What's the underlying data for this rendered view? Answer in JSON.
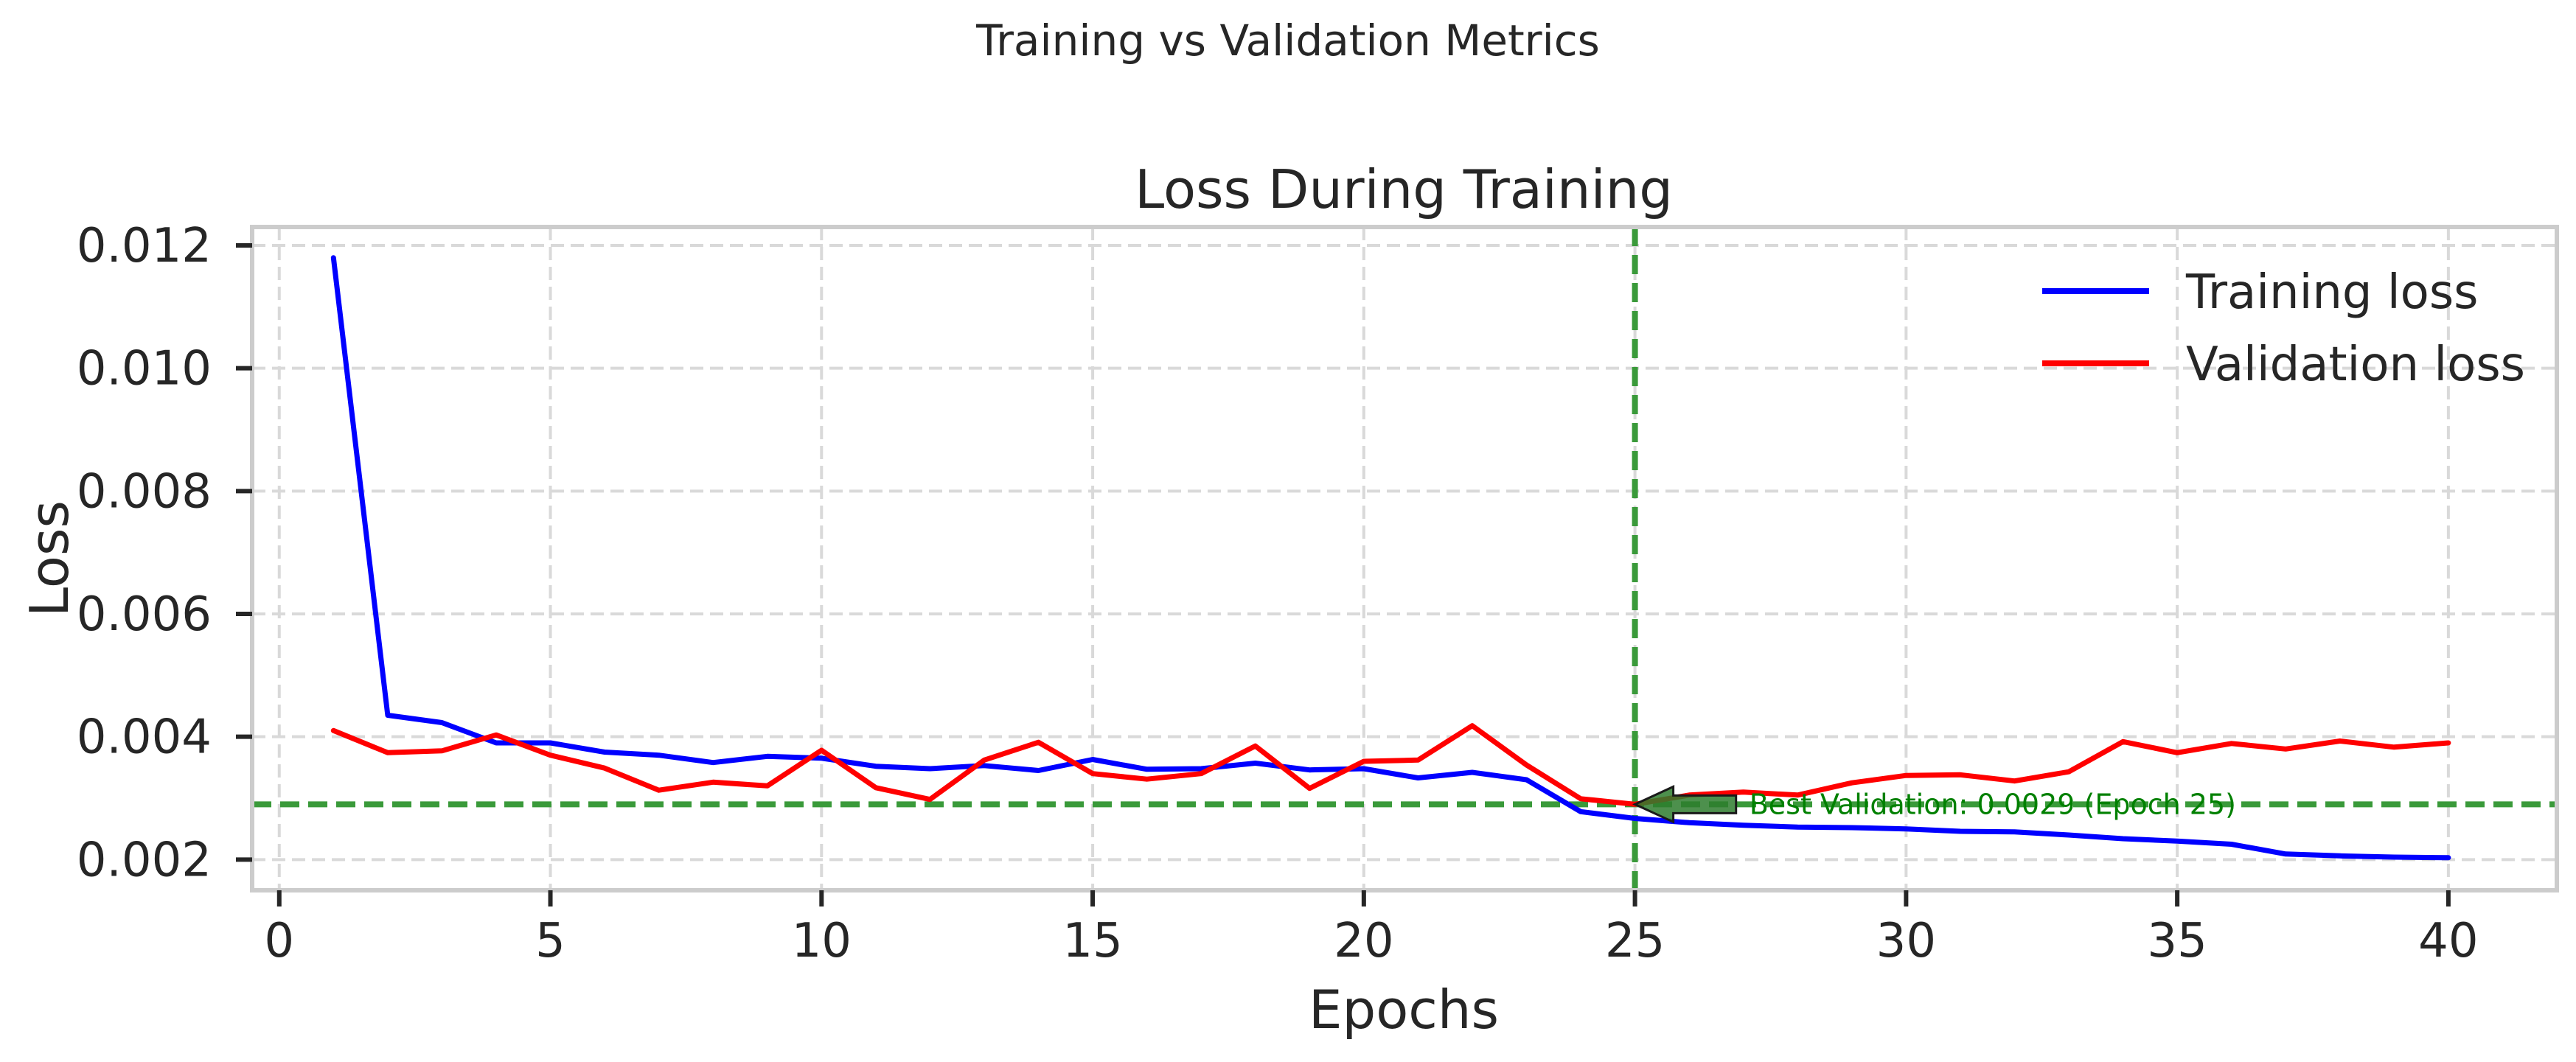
{
  "figure": {
    "suptitle": "Training vs Validation Metrics"
  },
  "chart_data": {
    "type": "line",
    "title": "Loss During Training",
    "xlabel": "Epochs",
    "ylabel": "Loss",
    "xlim": [
      -0.5,
      42
    ],
    "ylim": [
      0.0015,
      0.0123
    ],
    "xticks": [
      0,
      5,
      10,
      15,
      20,
      25,
      30,
      35,
      40
    ],
    "xtick_labels": [
      "0",
      "5",
      "10",
      "15",
      "20",
      "25",
      "30",
      "35",
      "40"
    ],
    "yticks": [
      0.002,
      0.004,
      0.006,
      0.008,
      0.01,
      0.012
    ],
    "ytick_labels": [
      "0.002",
      "0.004",
      "0.006",
      "0.008",
      "0.010",
      "0.012"
    ],
    "grid": true,
    "legend_position": "top-right",
    "x": [
      1,
      2,
      3,
      4,
      5,
      6,
      7,
      8,
      9,
      10,
      11,
      12,
      13,
      14,
      15,
      16,
      17,
      18,
      19,
      20,
      21,
      22,
      23,
      24,
      25,
      26,
      27,
      28,
      29,
      30,
      31,
      32,
      33,
      34,
      35,
      36,
      37,
      38,
      39,
      40
    ],
    "series": [
      {
        "name": "Training loss",
        "color": "#0000ff",
        "values": [
          0.0118,
          0.00435,
          0.00423,
          0.0039,
          0.0039,
          0.00375,
          0.0037,
          0.00358,
          0.00368,
          0.00365,
          0.00352,
          0.00348,
          0.00353,
          0.00345,
          0.00363,
          0.00347,
          0.00348,
          0.00357,
          0.00346,
          0.00348,
          0.00333,
          0.00342,
          0.0033,
          0.00278,
          0.00267,
          0.0026,
          0.00256,
          0.00253,
          0.00252,
          0.0025,
          0.00246,
          0.00245,
          0.0024,
          0.00234,
          0.0023,
          0.00225,
          0.00209,
          0.00206,
          0.00204,
          0.00203
        ]
      },
      {
        "name": "Validation loss",
        "color": "#ff0000",
        "values": [
          0.0041,
          0.00374,
          0.00377,
          0.00403,
          0.0037,
          0.00349,
          0.00313,
          0.00326,
          0.0032,
          0.00378,
          0.00317,
          0.00298,
          0.00362,
          0.00391,
          0.0034,
          0.00331,
          0.0034,
          0.00385,
          0.00316,
          0.0036,
          0.00362,
          0.00418,
          0.00354,
          0.00299,
          0.0029,
          0.00305,
          0.0031,
          0.00305,
          0.00325,
          0.00337,
          0.00338,
          0.00328,
          0.00343,
          0.00392,
          0.00374,
          0.00389,
          0.0038,
          0.00393,
          0.00383,
          0.0039
        ]
      }
    ],
    "reference_lines": {
      "color": "#3a9a3a",
      "vertical_x": 25,
      "horizontal_y": 0.0029
    },
    "annotation": {
      "text": "Best Validation: 0.0029 (Epoch 25)",
      "color": "#008000",
      "arrow_color": "#2e7d2e",
      "point": [
        25,
        0.0029
      ],
      "text_anchor": [
        27,
        0.0029
      ]
    }
  }
}
